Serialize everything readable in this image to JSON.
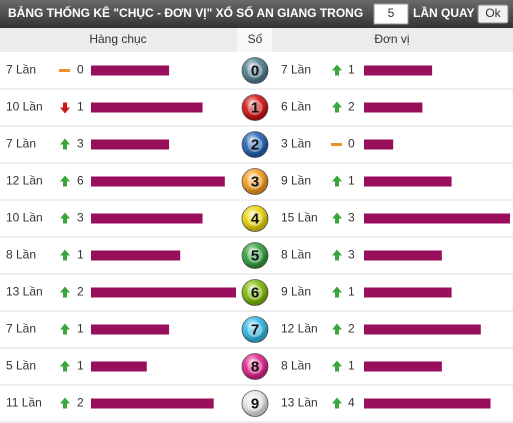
{
  "header": {
    "title": "BẢNG THỐNG KÊ \"CHỤC - ĐƠN VỊ\" XỔ SỐ AN GIANG TRONG",
    "draw_count": "5",
    "suffix": "LẦN QUAY",
    "button": "Ok"
  },
  "columns": {
    "tens": "Hàng chục",
    "digit": "Số",
    "units": "Đơn vị"
  },
  "bar_color": "#990f5c",
  "rows": [
    {
      "digit": "0",
      "ball_color": "#4e7f8e",
      "tens": {
        "count": 7,
        "count_label": "7 Lần",
        "trend": "flat",
        "change": 0
      },
      "units": {
        "count": 7,
        "count_label": "7 Lần",
        "trend": "up",
        "change": 1
      }
    },
    {
      "digit": "1",
      "ball_color": "#d01010",
      "tens": {
        "count": 10,
        "count_label": "10 Lần",
        "trend": "down",
        "change": 1
      },
      "units": {
        "count": 6,
        "count_label": "6 Lần",
        "trend": "up",
        "change": 2
      }
    },
    {
      "digit": "2",
      "ball_color": "#1f5fb0",
      "tens": {
        "count": 7,
        "count_label": "7 Lần",
        "trend": "up",
        "change": 3
      },
      "units": {
        "count": 3,
        "count_label": "3 Lần",
        "trend": "flat",
        "change": 0
      }
    },
    {
      "digit": "3",
      "ball_color": "#f29a18",
      "tens": {
        "count": 12,
        "count_label": "12 Lần",
        "trend": "up",
        "change": 6
      },
      "units": {
        "count": 9,
        "count_label": "9 Lần",
        "trend": "up",
        "change": 1
      }
    },
    {
      "digit": "4",
      "ball_color": "#e8d400",
      "tens": {
        "count": 10,
        "count_label": "10 Lần",
        "trend": "up",
        "change": 3
      },
      "units": {
        "count": 15,
        "count_label": "15 Lần",
        "trend": "up",
        "change": 3
      }
    },
    {
      "digit": "5",
      "ball_color": "#2f9e3a",
      "tens": {
        "count": 8,
        "count_label": "8 Lần",
        "trend": "up",
        "change": 1
      },
      "units": {
        "count": 8,
        "count_label": "8 Lần",
        "trend": "up",
        "change": 3
      }
    },
    {
      "digit": "6",
      "ball_color": "#7cb800",
      "tens": {
        "count": 13,
        "count_label": "13 Lần",
        "trend": "up",
        "change": 2
      },
      "units": {
        "count": 9,
        "count_label": "9 Lần",
        "trend": "up",
        "change": 1
      }
    },
    {
      "digit": "7",
      "ball_color": "#2fb6e2",
      "tens": {
        "count": 7,
        "count_label": "7 Lần",
        "trend": "up",
        "change": 1
      },
      "units": {
        "count": 12,
        "count_label": "12 Lần",
        "trend": "up",
        "change": 2
      }
    },
    {
      "digit": "8",
      "ball_color": "#e0208c",
      "tens": {
        "count": 5,
        "count_label": "5 Lần",
        "trend": "up",
        "change": 1
      },
      "units": {
        "count": 8,
        "count_label": "8 Lần",
        "trend": "up",
        "change": 1
      }
    },
    {
      "digit": "9",
      "ball_color": "#e6e6e6",
      "tens": {
        "count": 11,
        "count_label": "11 Lần",
        "trend": "up",
        "change": 2
      },
      "units": {
        "count": 13,
        "count_label": "13 Lần",
        "trend": "up",
        "change": 4
      }
    }
  ]
}
